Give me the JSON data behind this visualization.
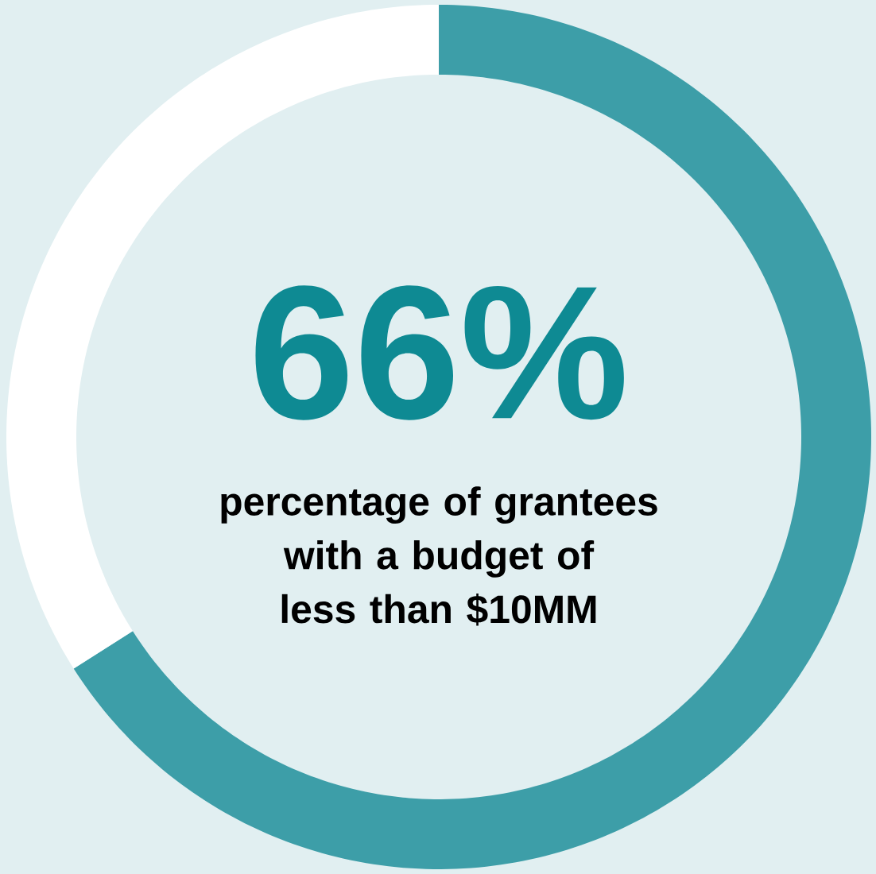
{
  "chart_data": {
    "type": "donut",
    "title": "66%",
    "subtitle": "percentage of grantees with a budget of less than $10MM",
    "categories": [
      null,
      null
    ],
    "values": [
      66,
      34
    ],
    "colors": [
      "#3d9ea8",
      "#ffffff"
    ]
  }
}
